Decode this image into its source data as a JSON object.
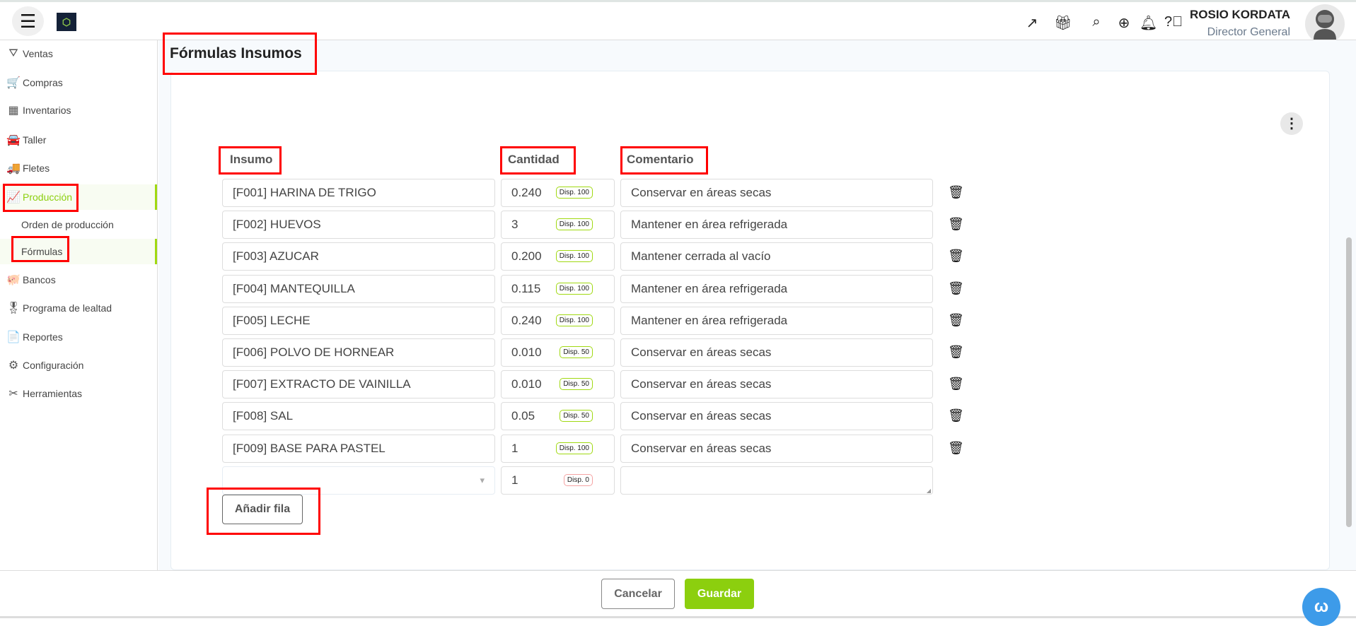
{
  "header": {
    "user_name": "ROSIO KORDATA",
    "user_role": "Director General",
    "icons": [
      "external-link-icon",
      "gift-icon",
      "search-product-icon",
      "add-circle-icon",
      "bell-icon",
      "help-icon"
    ]
  },
  "sidebar": {
    "items": [
      {
        "label": "Ventas",
        "icon": "⛛"
      },
      {
        "label": "Compras",
        "icon": "🛒"
      },
      {
        "label": "Inventarios",
        "icon": "▦"
      },
      {
        "label": "Taller",
        "icon": "🚘"
      },
      {
        "label": "Fletes",
        "icon": "🚚"
      },
      {
        "label": "Producción",
        "icon": "📈"
      },
      {
        "label": "Orden de producción"
      },
      {
        "label": "Fórmulas"
      },
      {
        "label": "Bancos",
        "icon": "🐖"
      },
      {
        "label": "Programa de lealtad",
        "icon": "🎖"
      },
      {
        "label": "Reportes",
        "icon": "📄"
      },
      {
        "label": "Configuración",
        "icon": "⚙"
      },
      {
        "label": "Herramientas",
        "icon": "✂"
      }
    ],
    "active": "Producción",
    "active_sub": "Fórmulas",
    "accent": "#a0d911"
  },
  "page": {
    "title": "Fórmulas Insumos"
  },
  "table": {
    "headers": {
      "insumo": "Insumo",
      "cantidad": "Cantidad",
      "comentario": "Comentario"
    },
    "rows": [
      {
        "insumo": "[F001] HARINA DE TRIGO",
        "cantidad": "0.240",
        "disp": "Disp. 100",
        "comentario": "Conservar en áreas secas"
      },
      {
        "insumo": "[F002] HUEVOS",
        "cantidad": "3",
        "disp": "Disp. 100",
        "comentario": "Mantener en área refrigerada"
      },
      {
        "insumo": "[F003] AZUCAR",
        "cantidad": "0.200",
        "disp": "Disp. 100",
        "comentario": "Mantener cerrada al vacío"
      },
      {
        "insumo": "[F004] MANTEQUILLA",
        "cantidad": "0.115",
        "disp": "Disp. 100",
        "comentario": "Mantener en área refrigerada"
      },
      {
        "insumo": "[F005] LECHE",
        "cantidad": "0.240",
        "disp": "Disp. 100",
        "comentario": "Mantener en área refrigerada"
      },
      {
        "insumo": "[F006] POLVO DE HORNEAR",
        "cantidad": "0.010",
        "disp": "Disp. 50",
        "comentario": "Conservar en áreas secas"
      },
      {
        "insumo": "[F007] EXTRACTO DE VAINILLA",
        "cantidad": "0.010",
        "disp": "Disp. 50",
        "comentario": "Conservar en áreas secas"
      },
      {
        "insumo": "[F008] SAL",
        "cantidad": "0.05",
        "disp": "Disp. 50",
        "comentario": "Conservar en áreas secas"
      },
      {
        "insumo": "[F009] BASE PARA PASTEL",
        "cantidad": "1",
        "disp": "Disp. 100",
        "comentario": "Conservar en áreas secas"
      }
    ],
    "new_row": {
      "insumo": "",
      "cantidad": "1",
      "disp": "Disp. 0",
      "comentario": ""
    },
    "add_row_label": "Añadir fila"
  },
  "footer": {
    "cancel_label": "Cancelar",
    "save_label": "Guardar",
    "save_color": "#8ccf0e"
  }
}
